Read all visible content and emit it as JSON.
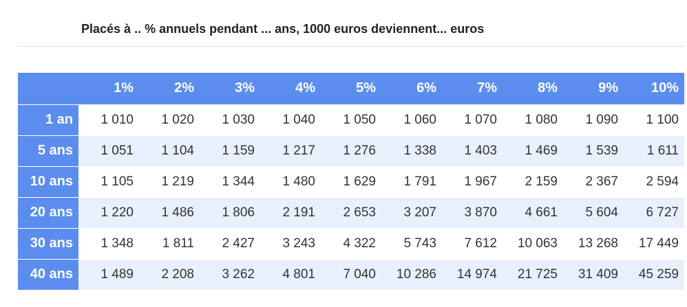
{
  "title": "Placés à .. % annuels pendant ... ans, 1000 euros deviennent... euros",
  "colors": {
    "header_bg": "#5b8def",
    "stripe_bg": "#e8f0fd"
  },
  "table": {
    "corner": "",
    "columns": [
      "1%",
      "2%",
      "3%",
      "4%",
      "5%",
      "6%",
      "7%",
      "8%",
      "9%",
      "10%"
    ],
    "rows": [
      {
        "label": "1 an",
        "values": [
          "1 010",
          "1 020",
          "1 030",
          "1 040",
          "1 050",
          "1 060",
          "1 070",
          "1 080",
          "1 090",
          "1 100"
        ]
      },
      {
        "label": "5 ans",
        "values": [
          "1 051",
          "1 104",
          "1 159",
          "1 217",
          "1 276",
          "1 338",
          "1 403",
          "1 469",
          "1 539",
          "1 611"
        ]
      },
      {
        "label": "10 ans",
        "values": [
          "1 105",
          "1 219",
          "1 344",
          "1 480",
          "1 629",
          "1 791",
          "1 967",
          "2 159",
          "2 367",
          "2 594"
        ]
      },
      {
        "label": "20 ans",
        "values": [
          "1 220",
          "1 486",
          "1 806",
          "2 191",
          "2 653",
          "3 207",
          "3 870",
          "4 661",
          "5 604",
          "6 727"
        ]
      },
      {
        "label": "30 ans",
        "values": [
          "1 348",
          "1 811",
          "2 427",
          "3 243",
          "4 322",
          "5 743",
          "7 612",
          "10 063",
          "13 268",
          "17 449"
        ]
      },
      {
        "label": "40 ans",
        "values": [
          "1 489",
          "2 208",
          "3 262",
          "4 801",
          "7 040",
          "10 286",
          "14 974",
          "21 725",
          "31 409",
          "45 259"
        ]
      }
    ]
  }
}
